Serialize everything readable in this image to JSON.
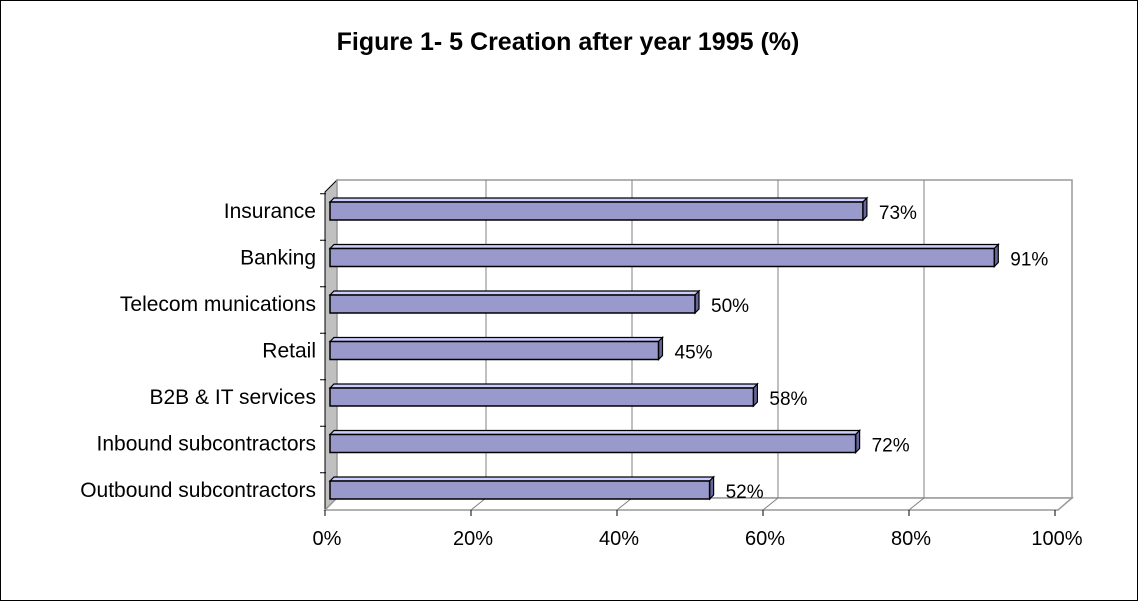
{
  "chart_data": {
    "type": "bar",
    "orientation": "horizontal",
    "title": "Figure 1- 5  Creation after year 1995 (%)",
    "categories": [
      "Insurance",
      "Banking",
      "Telecom munications",
      "Retail",
      "B2B & IT services",
      "Inbound subcontractors",
      "Outbound subcontractors"
    ],
    "values": [
      73,
      91,
      50,
      45,
      58,
      72,
      52
    ],
    "data_labels": [
      "73%",
      "91%",
      "50%",
      "45%",
      "58%",
      "72%",
      "52%"
    ],
    "xlim": [
      0,
      100
    ],
    "x_ticks": [
      "0%",
      "20%",
      "40%",
      "60%",
      "80%",
      "100%"
    ],
    "xlabel": "",
    "ylabel": "",
    "grid": true,
    "style": "3d",
    "colors": {
      "bar_front": "#9999cc",
      "bar_top": "#ccccff",
      "bar_side": "#666699",
      "bar_outline": "#000000",
      "wall": "#c0c0c0",
      "frame": "#999999",
      "grid": "#808080"
    }
  }
}
